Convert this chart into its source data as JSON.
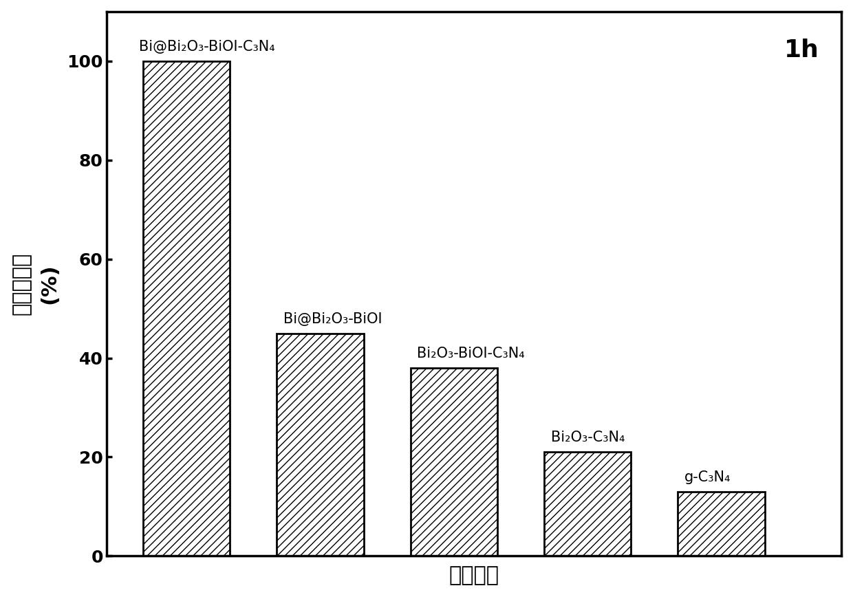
{
  "values": [
    100,
    45,
    38,
    21,
    13
  ],
  "bar_labels": [
    "Bi@Bi₂O₃-BiOI-C₃N₄",
    "Bi@Bi₂O₃-BiOI",
    "Bi₂O₃-BiOI-C₃N₄",
    "Bi₂O₃-C₃N₄",
    "g-C₃N₄"
  ],
  "ylabel_chars": [
    "苯",
    "酚",
    "去",
    "除",
    "率",
    "(%)",
    ""
  ],
  "ylabel_line1": "苯酚去除率",
  "ylabel_line2": "(%)",
  "xlabel": "光催化剂",
  "annotation": "1h",
  "ylim": [
    0,
    110
  ],
  "yticks": [
    0,
    20,
    40,
    60,
    80,
    100
  ],
  "bar_color": "#ffffff",
  "bar_edgecolor": "#000000",
  "hatch": "///",
  "bar_width": 0.65,
  "background_color": "#ffffff",
  "axis_fontsize": 22,
  "label_fontsize": 15,
  "tick_fontsize": 18,
  "annotation_fontsize": 26,
  "ylabel_fontsize": 22
}
